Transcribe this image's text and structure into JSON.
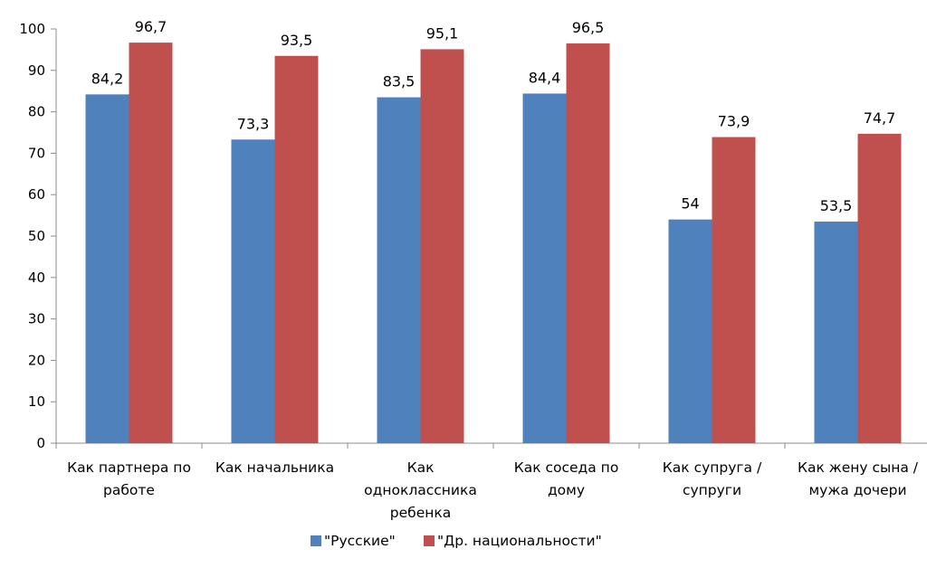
{
  "chart_data": {
    "type": "bar",
    "categories": [
      [
        "Как партнера по",
        "работе"
      ],
      [
        "Как начальника"
      ],
      [
        "Как",
        "одноклассника",
        "ребенка"
      ],
      [
        "Как соседа по",
        "дому"
      ],
      [
        "Как супруга /",
        "супруги"
      ],
      [
        "Как жену сына /",
        "мужа дочери"
      ]
    ],
    "series": [
      {
        "name": "\"Русские\"",
        "color": "#4f81bd",
        "values": [
          84.2,
          73.3,
          83.5,
          84.4,
          54,
          53.5
        ],
        "labels": [
          "84,2",
          "73,3",
          "83,5",
          "84,4",
          "54",
          "53,5"
        ]
      },
      {
        "name": "\"Др. национальности\"",
        "color": "#c0504d",
        "values": [
          96.7,
          93.5,
          95.1,
          96.5,
          73.9,
          74.7
        ],
        "labels": [
          "96,7",
          "93,5",
          "95,1",
          "96,5",
          "73,9",
          "74,7"
        ]
      }
    ],
    "ylim": [
      0,
      100
    ],
    "yticks": [
      0,
      10,
      20,
      30,
      40,
      50,
      60,
      70,
      80,
      90,
      100
    ],
    "grid": false,
    "legend_position": "bottom",
    "title": "",
    "xlabel": "",
    "ylabel": ""
  }
}
